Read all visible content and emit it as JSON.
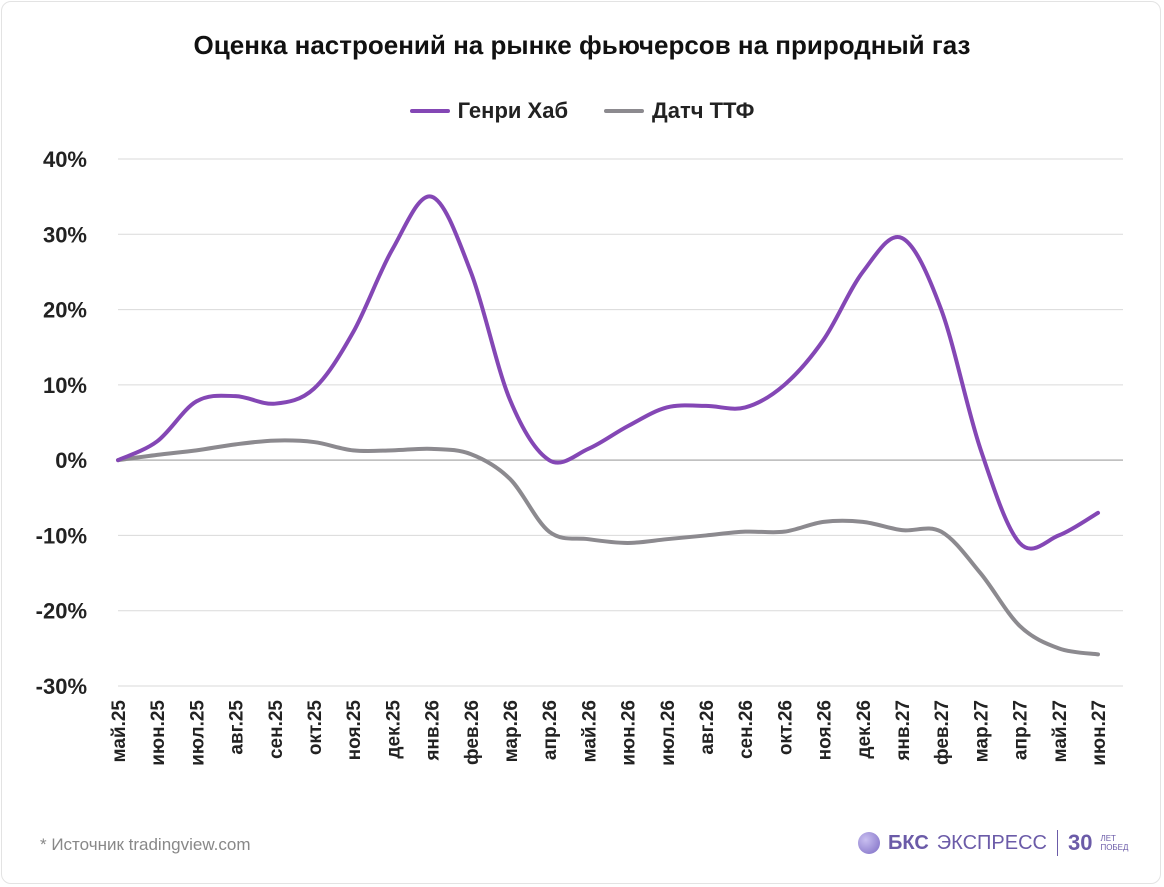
{
  "chart_data": {
    "type": "line",
    "title": "Оценка настроений на рынке фьючерсов на природный газ",
    "x": [
      "май.25",
      "июн.25",
      "июл.25",
      "авг.25",
      "сен.25",
      "окт.25",
      "ноя.25",
      "дек.25",
      "янв.26",
      "фев.26",
      "мар.26",
      "апр.26",
      "май.26",
      "июн.26",
      "июл.26",
      "авг.26",
      "сен.26",
      "окт.26",
      "ноя.26",
      "дек.26",
      "янв.27",
      "фев.27",
      "мар.27",
      "апр.27",
      "май.27",
      "июн.27"
    ],
    "ylim": [
      -30,
      40
    ],
    "yticks": [
      40,
      30,
      20,
      10,
      0,
      -10,
      -20,
      -30
    ],
    "ytick_labels": [
      "40%",
      "30%",
      "20%",
      "10%",
      "0%",
      "-10%",
      "-20%",
      "-30%"
    ],
    "grid": true,
    "legend_position": "top-center",
    "series": [
      {
        "name": "Генри Хаб",
        "color": "#8447b5",
        "values": [
          0,
          2.5,
          7.8,
          8.5,
          7.5,
          9.5,
          17,
          28,
          35,
          25,
          8,
          0,
          1.5,
          4.5,
          7,
          7.2,
          7,
          10,
          16,
          25,
          29.5,
          20,
          1.5,
          -11,
          -10,
          -7
        ]
      },
      {
        "name": "Датч ТТФ",
        "color": "#8c8a8f",
        "values": [
          0,
          0.7,
          1.3,
          2.1,
          2.6,
          2.4,
          1.3,
          1.3,
          1.5,
          0.8,
          -2.5,
          -9.5,
          -10.5,
          -11,
          -10.5,
          -10,
          -9.5,
          -9.5,
          -8.2,
          -8.2,
          -9.3,
          -9.5,
          -15,
          -22,
          -25,
          -25.8
        ]
      }
    ]
  },
  "footer": {
    "source": "*  Источник tradingview.com",
    "brand_bks": "БКС",
    "brand_express": "ЭКСПРЕСС",
    "brand_30": "30",
    "brand_small_1": "ЛЕТ",
    "brand_small_2": "ПОБЕД"
  }
}
